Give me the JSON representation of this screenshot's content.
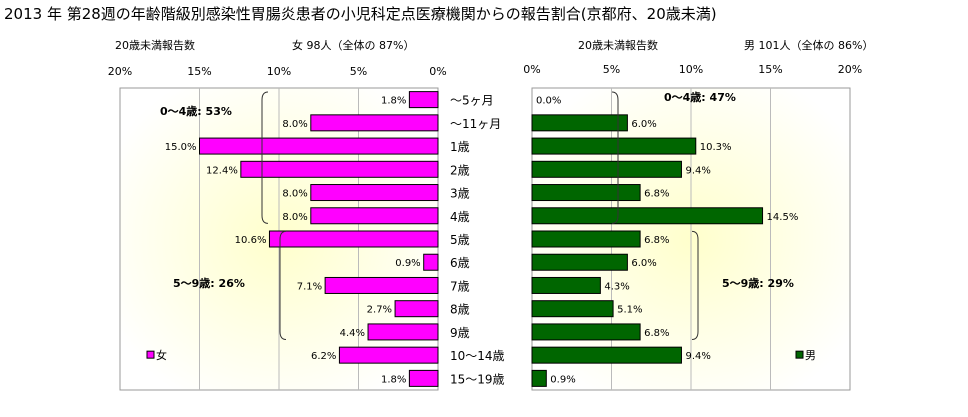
{
  "title": "2013 年 第28週の年齢階級別感染性胃腸炎患者の小児科定点医療機関からの報告割合(京都府、20歳未満)",
  "left_panel": {
    "caption": "20歳未満報告数",
    "summary": "女 98人（全体の 87%）",
    "legend": "女",
    "bracket_labels": [
      "0～4歳: 53%",
      "5～9歳: 26%"
    ]
  },
  "right_panel": {
    "caption": "20歳未満報告数",
    "summary": "男 101人（全体の 86%）",
    "legend": "男",
    "bracket_labels": [
      "0～4歳: 47%",
      "5～9歳: 29%"
    ]
  },
  "colors": {
    "female": "#ff00ff",
    "male": "#006600",
    "plot_bg": "#fffff0",
    "glow": "#ffff99"
  },
  "chart_data": [
    {
      "type": "bar",
      "orientation": "horizontal",
      "direction": "right-to-left",
      "categories": [
        "～5ヶ月",
        "～11ヶ月",
        "1歳",
        "2歳",
        "3歳",
        "4歳",
        "5歳",
        "6歳",
        "7歳",
        "8歳",
        "9歳",
        "10～14歳",
        "15～19歳"
      ],
      "series": [
        {
          "name": "女",
          "values": [
            1.8,
            8.0,
            15.0,
            12.4,
            8.0,
            8.0,
            10.6,
            0.9,
            7.1,
            2.7,
            4.4,
            6.2,
            1.8
          ]
        }
      ],
      "ticks": [
        "20%",
        "15%",
        "10%",
        "5%",
        "0%"
      ],
      "xlim": [
        0,
        20
      ],
      "value_suffix": "%"
    },
    {
      "type": "bar",
      "orientation": "horizontal",
      "direction": "left-to-right",
      "categories": [
        "～5ヶ月",
        "～11ヶ月",
        "1歳",
        "2歳",
        "3歳",
        "4歳",
        "5歳",
        "6歳",
        "7歳",
        "8歳",
        "9歳",
        "10～14歳",
        "15～19歳"
      ],
      "series": [
        {
          "name": "男",
          "values": [
            0.0,
            6.0,
            10.3,
            9.4,
            6.8,
            14.5,
            6.8,
            6.0,
            4.3,
            5.1,
            6.8,
            9.4,
            0.9
          ]
        }
      ],
      "ticks": [
        "0%",
        "5%",
        "10%",
        "15%",
        "20%"
      ],
      "xlim": [
        0,
        20
      ],
      "value_suffix": "%"
    }
  ]
}
